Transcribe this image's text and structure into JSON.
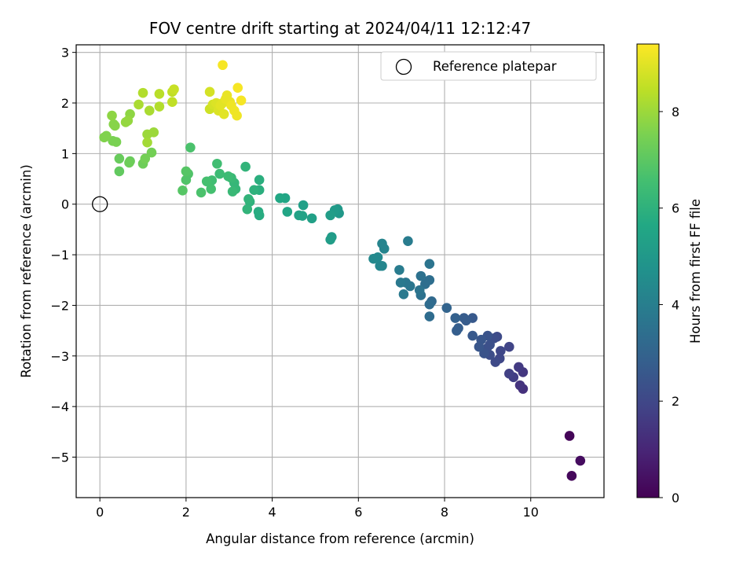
{
  "chart_data": {
    "type": "scatter",
    "title": "FOV centre drift starting at 2024/04/11 12:12:47",
    "xlabel": "Angular distance from reference (arcmin)",
    "ylabel": "Rotation from reference (arcmin)",
    "xlim": [
      -0.55,
      11.7
    ],
    "ylim": [
      -5.8,
      3.15
    ],
    "xticks": [
      0,
      2,
      4,
      6,
      8,
      10
    ],
    "yticks": [
      -5,
      -4,
      -3,
      -2,
      -1,
      0,
      1,
      2,
      3
    ],
    "xtick_labels": [
      "0",
      "2",
      "4",
      "6",
      "8",
      "10"
    ],
    "ytick_labels": [
      "−5",
      "−4",
      "−3",
      "−2",
      "−1",
      "0",
      "1",
      "2",
      "3"
    ],
    "grid": true,
    "legend": {
      "placement": "upper-right",
      "entries": [
        "Reference platepar"
      ]
    },
    "reference_point": {
      "x": 0,
      "y": 0,
      "marker": "open-circle",
      "label": "Reference platepar"
    },
    "colorbar": {
      "label": "Hours from first FF file",
      "range": [
        0,
        9.4
      ],
      "ticks": [
        0,
        2,
        4,
        6,
        8
      ],
      "tick_labels": [
        "0",
        "2",
        "4",
        "6",
        "8"
      ],
      "colormap": "viridis"
    },
    "series": [
      {
        "points": [
          [
            10.9,
            -4.58,
            0.1
          ],
          [
            10.95,
            -5.37,
            0.2
          ],
          [
            11.15,
            -5.07,
            0.3
          ],
          [
            9.82,
            -3.65,
            1.3
          ],
          [
            9.75,
            -3.58,
            1.4
          ],
          [
            9.82,
            -3.32,
            1.5
          ],
          [
            9.72,
            -3.22,
            1.6
          ],
          [
            9.6,
            -3.42,
            1.7
          ],
          [
            9.5,
            -3.35,
            1.8
          ],
          [
            9.5,
            -2.82,
            1.9
          ],
          [
            9.3,
            -2.9,
            2.0
          ],
          [
            9.28,
            -3.05,
            2.0
          ],
          [
            9.18,
            -3.12,
            2.1
          ],
          [
            9.22,
            -2.62,
            2.1
          ],
          [
            9.15,
            -2.65,
            2.2
          ],
          [
            9.05,
            -2.98,
            2.2
          ],
          [
            9.05,
            -2.78,
            2.3
          ],
          [
            8.98,
            -2.85,
            2.3
          ],
          [
            9.0,
            -2.6,
            2.4
          ],
          [
            8.92,
            -2.95,
            2.4
          ],
          [
            8.85,
            -2.68,
            2.5
          ],
          [
            8.8,
            -2.82,
            2.5
          ],
          [
            8.65,
            -2.6,
            2.6
          ],
          [
            8.65,
            -2.25,
            2.6
          ],
          [
            8.5,
            -2.3,
            2.7
          ],
          [
            8.45,
            -2.25,
            2.7
          ],
          [
            8.32,
            -2.45,
            2.8
          ],
          [
            8.28,
            -2.5,
            2.8
          ],
          [
            8.25,
            -2.25,
            2.9
          ],
          [
            8.05,
            -2.05,
            3.0
          ],
          [
            7.7,
            -1.92,
            3.2
          ],
          [
            7.65,
            -2.22,
            3.3
          ],
          [
            7.65,
            -1.98,
            3.3
          ],
          [
            7.65,
            -1.5,
            3.4
          ],
          [
            7.55,
            -1.58,
            3.4
          ],
          [
            7.45,
            -1.8,
            3.5
          ],
          [
            7.45,
            -1.42,
            3.5
          ],
          [
            7.42,
            -1.7,
            3.6
          ],
          [
            7.65,
            -1.18,
            3.6
          ],
          [
            7.2,
            -1.62,
            3.7
          ],
          [
            7.1,
            -1.55,
            3.7
          ],
          [
            7.05,
            -1.78,
            3.8
          ],
          [
            6.98,
            -1.55,
            3.8
          ],
          [
            6.95,
            -1.3,
            3.9
          ],
          [
            7.15,
            -0.73,
            3.9
          ],
          [
            6.6,
            -0.88,
            4.2
          ],
          [
            6.55,
            -0.78,
            4.2
          ],
          [
            6.55,
            -1.22,
            4.3
          ],
          [
            6.5,
            -1.22,
            4.3
          ],
          [
            6.45,
            -1.05,
            4.4
          ],
          [
            6.35,
            -1.08,
            4.4
          ],
          [
            5.55,
            -0.18,
            5.0
          ],
          [
            5.52,
            -0.1,
            5.0
          ],
          [
            5.45,
            -0.12,
            5.1
          ],
          [
            5.38,
            -0.65,
            5.1
          ],
          [
            5.35,
            -0.7,
            5.2
          ],
          [
            5.35,
            -0.22,
            5.2
          ],
          [
            4.92,
            -0.28,
            5.3
          ],
          [
            4.72,
            -0.02,
            5.3
          ],
          [
            4.7,
            -0.23,
            5.4
          ],
          [
            4.62,
            -0.22,
            5.4
          ],
          [
            4.35,
            -0.15,
            5.5
          ],
          [
            4.3,
            0.12,
            5.5
          ],
          [
            4.18,
            0.12,
            5.6
          ],
          [
            3.7,
            -0.22,
            5.8
          ],
          [
            3.68,
            -0.15,
            5.8
          ],
          [
            3.7,
            0.28,
            5.9
          ],
          [
            3.7,
            0.48,
            5.9
          ],
          [
            3.58,
            0.28,
            6.0
          ],
          [
            3.48,
            0.05,
            6.0
          ],
          [
            3.45,
            0.1,
            6.1
          ],
          [
            3.42,
            -0.1,
            6.1
          ],
          [
            3.38,
            0.74,
            6.1
          ],
          [
            3.15,
            0.3,
            6.2
          ],
          [
            3.12,
            0.42,
            6.2
          ],
          [
            3.08,
            0.25,
            6.3
          ],
          [
            3.05,
            0.52,
            6.3
          ],
          [
            2.98,
            0.55,
            6.4
          ],
          [
            2.78,
            0.6,
            6.4
          ],
          [
            2.72,
            0.8,
            6.5
          ],
          [
            2.6,
            0.47,
            6.5
          ],
          [
            2.58,
            0.3,
            6.6
          ],
          [
            2.48,
            0.45,
            6.6
          ],
          [
            2.35,
            0.23,
            6.7
          ],
          [
            2.1,
            1.12,
            6.7
          ],
          [
            2.05,
            0.6,
            6.8
          ],
          [
            2.0,
            0.48,
            6.8
          ],
          [
            2.0,
            0.65,
            6.9
          ],
          [
            1.92,
            0.27,
            6.9
          ],
          [
            0.45,
            0.65,
            7.1
          ],
          [
            0.45,
            0.9,
            7.2
          ],
          [
            0.7,
            0.85,
            7.2
          ],
          [
            0.68,
            0.82,
            7.3
          ],
          [
            1.0,
            0.8,
            7.3
          ],
          [
            1.05,
            0.9,
            7.4
          ],
          [
            1.2,
            1.02,
            7.4
          ],
          [
            0.38,
            1.23,
            7.5
          ],
          [
            0.3,
            1.25,
            7.5
          ],
          [
            0.1,
            1.32,
            7.6
          ],
          [
            0.15,
            1.35,
            7.6
          ],
          [
            0.35,
            1.55,
            7.7
          ],
          [
            0.32,
            1.58,
            7.7
          ],
          [
            0.28,
            1.75,
            7.8
          ],
          [
            0.7,
            1.78,
            7.8
          ],
          [
            0.6,
            1.62,
            7.9
          ],
          [
            0.65,
            1.65,
            7.9
          ],
          [
            1.1,
            1.38,
            8.0
          ],
          [
            1.25,
            1.42,
            8.0
          ],
          [
            1.1,
            1.22,
            8.1
          ],
          [
            0.9,
            1.97,
            8.2
          ],
          [
            1.15,
            1.85,
            8.2
          ],
          [
            1.0,
            2.2,
            8.3
          ],
          [
            1.38,
            1.93,
            8.3
          ],
          [
            1.38,
            2.18,
            8.4
          ],
          [
            1.68,
            2.02,
            8.5
          ],
          [
            1.68,
            2.22,
            8.5
          ],
          [
            1.72,
            2.27,
            8.6
          ],
          [
            2.55,
            1.88,
            8.7
          ],
          [
            2.62,
            1.97,
            8.8
          ],
          [
            2.55,
            2.22,
            8.8
          ],
          [
            2.7,
            2.0,
            8.9
          ],
          [
            2.75,
            1.85,
            8.9
          ],
          [
            2.8,
            1.95,
            9.0
          ],
          [
            2.88,
            1.78,
            9.0
          ],
          [
            2.85,
            2.0,
            9.0
          ],
          [
            2.92,
            2.08,
            9.1
          ],
          [
            2.95,
            2.15,
            9.1
          ],
          [
            3.02,
            2.02,
            9.1
          ],
          [
            3.05,
            1.95,
            9.2
          ],
          [
            3.12,
            1.85,
            9.2
          ],
          [
            3.18,
            1.75,
            9.2
          ],
          [
            3.2,
            2.3,
            9.3
          ],
          [
            3.28,
            2.05,
            9.3
          ],
          [
            2.85,
            2.75,
            9.3
          ]
        ]
      }
    ]
  }
}
